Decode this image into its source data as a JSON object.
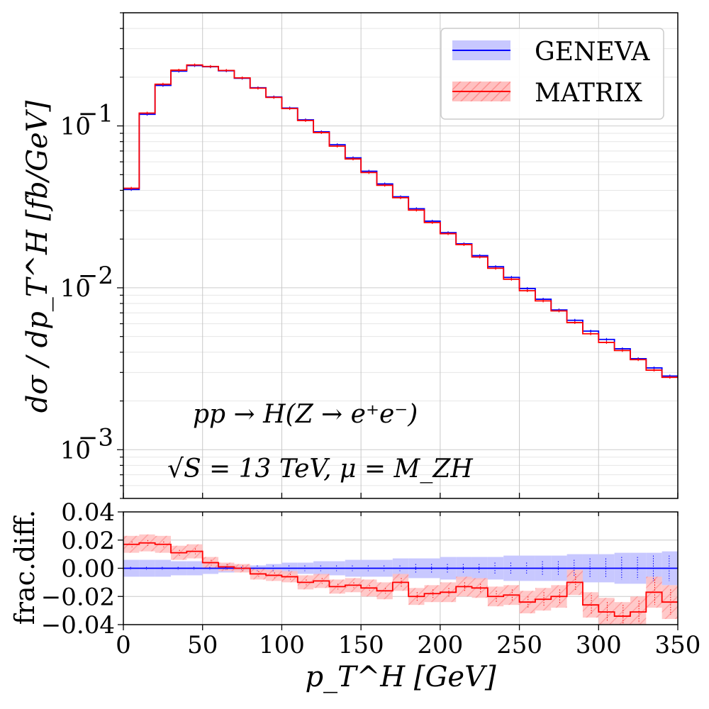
{
  "chart_data": [
    {
      "type": "line",
      "panel": "main",
      "ylabel": "dσ / dp_T^H   [fb/GeV]",
      "yscale": "log",
      "ylim": [
        0.0005,
        0.5
      ],
      "xlim": [
        0,
        350
      ],
      "grid": true,
      "legend": "top-right",
      "bin_width": 10,
      "bin_edges": [
        0,
        10,
        20,
        30,
        40,
        50,
        60,
        70,
        80,
        90,
        100,
        110,
        120,
        130,
        140,
        150,
        160,
        170,
        180,
        190,
        200,
        210,
        220,
        230,
        240,
        250,
        260,
        270,
        280,
        290,
        300,
        310,
        320,
        330,
        340,
        350
      ],
      "yticks": [
        "10^-3",
        "10^-2",
        "10^-1"
      ],
      "annotations": [
        "pp → H(Z → e⁺e⁻)",
        "√S = 13 TeV,  μ = M_ZH"
      ],
      "series": [
        {
          "name": "GENEVA",
          "color": "#0000ff",
          "band_color": "#c8c8ff",
          "values": [
            0.0405,
            0.118,
            0.178,
            0.218,
            0.236,
            0.232,
            0.219,
            0.197,
            0.172,
            0.151,
            0.129,
            0.109,
            0.092,
            0.0765,
            0.0635,
            0.0525,
            0.0438,
            0.0365,
            0.0308,
            0.0258,
            0.0219,
            0.0187,
            0.0158,
            0.0135,
            0.0116,
            0.0099,
            0.0085,
            0.0073,
            0.0063,
            0.0054,
            0.0048,
            0.0042,
            0.00365,
            0.0032,
            0.00285
          ]
        },
        {
          "name": "MATRIX",
          "color": "#ff0000",
          "band_color": "#ffb4b4",
          "values": [
            0.0412,
            0.12,
            0.181,
            0.221,
            0.238,
            0.233,
            0.22,
            0.198,
            0.171,
            0.15,
            0.128,
            0.108,
            0.091,
            0.075,
            0.0625,
            0.0515,
            0.043,
            0.036,
            0.0302,
            0.0253,
            0.0216,
            0.0185,
            0.0155,
            0.0132,
            0.0113,
            0.0096,
            0.0083,
            0.0072,
            0.0061,
            0.0052,
            0.0046,
            0.0041,
            0.0036,
            0.0031,
            0.0028
          ]
        }
      ]
    },
    {
      "type": "line",
      "panel": "ratio",
      "xlabel": "p_T^H   [GeV]",
      "ylabel": "frac.diff.",
      "ylim": [
        -0.04,
        0.04
      ],
      "xlim": [
        0,
        350
      ],
      "grid": true,
      "xticks": [
        0,
        50,
        100,
        150,
        200,
        250,
        300,
        350
      ],
      "yticks": [
        -0.04,
        -0.02,
        0.0,
        0.02,
        0.04
      ],
      "ytick_labels": [
        "−0.04",
        "−0.02",
        "0.00",
        "0.02",
        "0.04"
      ],
      "bin_edges": [
        0,
        10,
        20,
        30,
        40,
        50,
        60,
        70,
        80,
        90,
        100,
        110,
        120,
        130,
        140,
        150,
        160,
        170,
        180,
        190,
        200,
        210,
        220,
        230,
        240,
        250,
        260,
        270,
        280,
        290,
        300,
        310,
        320,
        330,
        340,
        350
      ],
      "series": [
        {
          "name": "GENEVA",
          "color": "#0000ff",
          "values": [
            0,
            0,
            0,
            0,
            0,
            0,
            0,
            0,
            0,
            0,
            0,
            0,
            0,
            0,
            0,
            0,
            0,
            0,
            0,
            0,
            0,
            0,
            0,
            0,
            0,
            0,
            0,
            0,
            0,
            0,
            0,
            0,
            0,
            0,
            0
          ],
          "band_half_width": [
            0.006,
            0.006,
            0.006,
            0.005,
            0.005,
            0.004,
            0.003,
            0.002,
            0.002,
            0.003,
            0.004,
            0.004,
            0.005,
            0.005,
            0.006,
            0.006,
            0.006,
            0.007,
            0.007,
            0.007,
            0.008,
            0.008,
            0.008,
            0.008,
            0.009,
            0.009,
            0.009,
            0.009,
            0.01,
            0.01,
            0.01,
            0.011,
            0.011,
            0.011,
            0.012
          ],
          "stat_err": [
            0.001,
            0.001,
            0.001,
            0.001,
            0.001,
            0.001,
            0.001,
            0.001,
            0.002,
            0.002,
            0.002,
            0.002,
            0.002,
            0.002,
            0.002,
            0.002,
            0.002,
            0.002,
            0.003,
            0.003,
            0.003,
            0.003,
            0.003,
            0.004,
            0.004,
            0.004,
            0.005,
            0.005,
            0.006,
            0.007,
            0.007,
            0.008,
            0.008,
            0.009,
            0.009
          ]
        },
        {
          "name": "MATRIX",
          "color": "#ff0000",
          "values": [
            0.017,
            0.018,
            0.017,
            0.011,
            0.012,
            0.004,
            0.001,
            0.0,
            -0.004,
            -0.005,
            -0.006,
            -0.01,
            -0.009,
            -0.013,
            -0.012,
            -0.014,
            -0.016,
            -0.01,
            -0.02,
            -0.018,
            -0.017,
            -0.013,
            -0.014,
            -0.02,
            -0.019,
            -0.024,
            -0.022,
            -0.02,
            -0.01,
            -0.026,
            -0.031,
            -0.034,
            -0.031,
            -0.017,
            -0.024
          ],
          "band_half_width": [
            0.006,
            0.006,
            0.006,
            0.005,
            0.005,
            0.004,
            0.003,
            0.003,
            0.004,
            0.004,
            0.004,
            0.005,
            0.005,
            0.005,
            0.005,
            0.006,
            0.006,
            0.006,
            0.006,
            0.006,
            0.007,
            0.007,
            0.007,
            0.007,
            0.007,
            0.008,
            0.008,
            0.008,
            0.009,
            0.009,
            0.01,
            0.01,
            0.011,
            0.011,
            0.012
          ],
          "stat_err": [
            0.002,
            0.002,
            0.002,
            0.002,
            0.002,
            0.002,
            0.002,
            0.002,
            0.002,
            0.002,
            0.002,
            0.002,
            0.002,
            0.002,
            0.002,
            0.002,
            0.002,
            0.003,
            0.003,
            0.003,
            0.003,
            0.003,
            0.003,
            0.004,
            0.004,
            0.004,
            0.005,
            0.005,
            0.006,
            0.007,
            0.007,
            0.008,
            0.008,
            0.009,
            0.009
          ]
        }
      ]
    }
  ]
}
